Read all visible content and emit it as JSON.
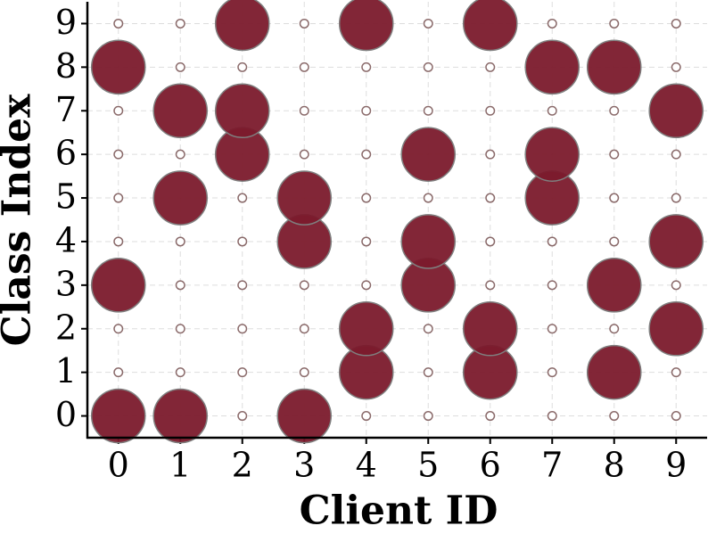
{
  "chart_data": {
    "type": "scatter",
    "xlabel": "Client ID",
    "ylabel": "Class Index",
    "xlim": [
      -0.5,
      9.5
    ],
    "ylim": [
      -0.5,
      9.5
    ],
    "xticks": [
      0,
      1,
      2,
      3,
      4,
      5,
      6,
      7,
      8,
      9
    ],
    "yticks": [
      0,
      1,
      2,
      3,
      4,
      5,
      6,
      7,
      8,
      9
    ],
    "grid": true,
    "series": [
      {
        "color": "#ffffff",
        "edgecolor": "#8a6a6a",
        "alpha": 1,
        "size": 25,
        "x": [
          0,
          0,
          0,
          0,
          0,
          0,
          0,
          1,
          1,
          1,
          1,
          1,
          1,
          1,
          2,
          2,
          2,
          2,
          2,
          2,
          2,
          3,
          3,
          3,
          3,
          3,
          3,
          3,
          4,
          4,
          4,
          4,
          4,
          4,
          4,
          5,
          5,
          5,
          5,
          5,
          5,
          5,
          6,
          6,
          6,
          6,
          6,
          6,
          6,
          7,
          7,
          7,
          7,
          7,
          7,
          7,
          8,
          8,
          8,
          8,
          8,
          8,
          8,
          9,
          9,
          9,
          9,
          9,
          9,
          9
        ],
        "y": [
          1,
          2,
          4,
          5,
          6,
          7,
          9,
          1,
          2,
          3,
          4,
          6,
          8,
          9,
          0,
          1,
          2,
          3,
          4,
          5,
          8,
          1,
          2,
          3,
          6,
          7,
          8,
          9,
          0,
          3,
          4,
          5,
          6,
          7,
          8,
          0,
          1,
          2,
          5,
          7,
          8,
          9,
          0,
          3,
          4,
          5,
          6,
          7,
          8,
          0,
          1,
          2,
          3,
          4,
          7,
          9,
          0,
          2,
          4,
          5,
          6,
          7,
          9,
          0,
          1,
          3,
          5,
          6,
          8,
          9
        ]
      },
      {
        "color": "#7b1a2c",
        "edgecolor": "#7f7f7f",
        "alpha": 0.95,
        "size": 1000,
        "x": [
          0,
          0,
          0,
          1,
          1,
          1,
          2,
          2,
          2,
          3,
          3,
          3,
          4,
          4,
          4,
          5,
          5,
          5,
          6,
          6,
          6,
          7,
          7,
          7,
          8,
          8,
          8,
          9,
          9,
          9
        ],
        "y": [
          0,
          3,
          8,
          0,
          5,
          7,
          6,
          7,
          9,
          0,
          4,
          5,
          1,
          2,
          9,
          3,
          4,
          6,
          1,
          2,
          9,
          5,
          6,
          8,
          1,
          3,
          8,
          2,
          4,
          7
        ]
      }
    ]
  }
}
